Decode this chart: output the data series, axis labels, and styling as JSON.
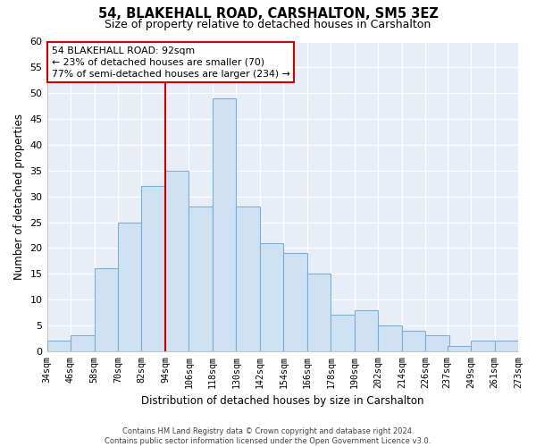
{
  "title": "54, BLAKEHALL ROAD, CARSHALTON, SM5 3EZ",
  "subtitle": "Size of property relative to detached houses in Carshalton",
  "xlabel": "Distribution of detached houses by size in Carshalton",
  "ylabel": "Number of detached properties",
  "bin_labels": [
    "34sqm",
    "46sqm",
    "58sqm",
    "70sqm",
    "82sqm",
    "94sqm",
    "106sqm",
    "118sqm",
    "130sqm",
    "142sqm",
    "154sqm",
    "166sqm",
    "178sqm",
    "190sqm",
    "202sqm",
    "214sqm",
    "226sqm",
    "237sqm",
    "249sqm",
    "261sqm",
    "273sqm"
  ],
  "bar_values": [
    2,
    3,
    16,
    25,
    32,
    35,
    28,
    49,
    28,
    21,
    19,
    15,
    7,
    8,
    5,
    4,
    3,
    1,
    2,
    2
  ],
  "bar_color": "#cfe2f3",
  "bar_edge_color": "#7bafd4",
  "ref_line_color": "#cc0000",
  "ylim": [
    0,
    60
  ],
  "yticks": [
    0,
    5,
    10,
    15,
    20,
    25,
    30,
    35,
    40,
    45,
    50,
    55,
    60
  ],
  "annotation_title": "54 BLAKEHALL ROAD: 92sqm",
  "annotation_line1": "← 23% of detached houses are smaller (70)",
  "annotation_line2": "77% of semi-detached houses are larger (234) →",
  "annotation_box_edge": "#cc0000",
  "footer_line1": "Contains HM Land Registry data © Crown copyright and database right 2024.",
  "footer_line2": "Contains public sector information licensed under the Open Government Licence v3.0.",
  "bin_starts": [
    34,
    46,
    58,
    70,
    82,
    94,
    106,
    118,
    130,
    142,
    154,
    166,
    178,
    190,
    202,
    214,
    226,
    237,
    249,
    261
  ],
  "bin_width": 12,
  "bg_color": "#e8eef8",
  "grid_color": "#ffffff"
}
